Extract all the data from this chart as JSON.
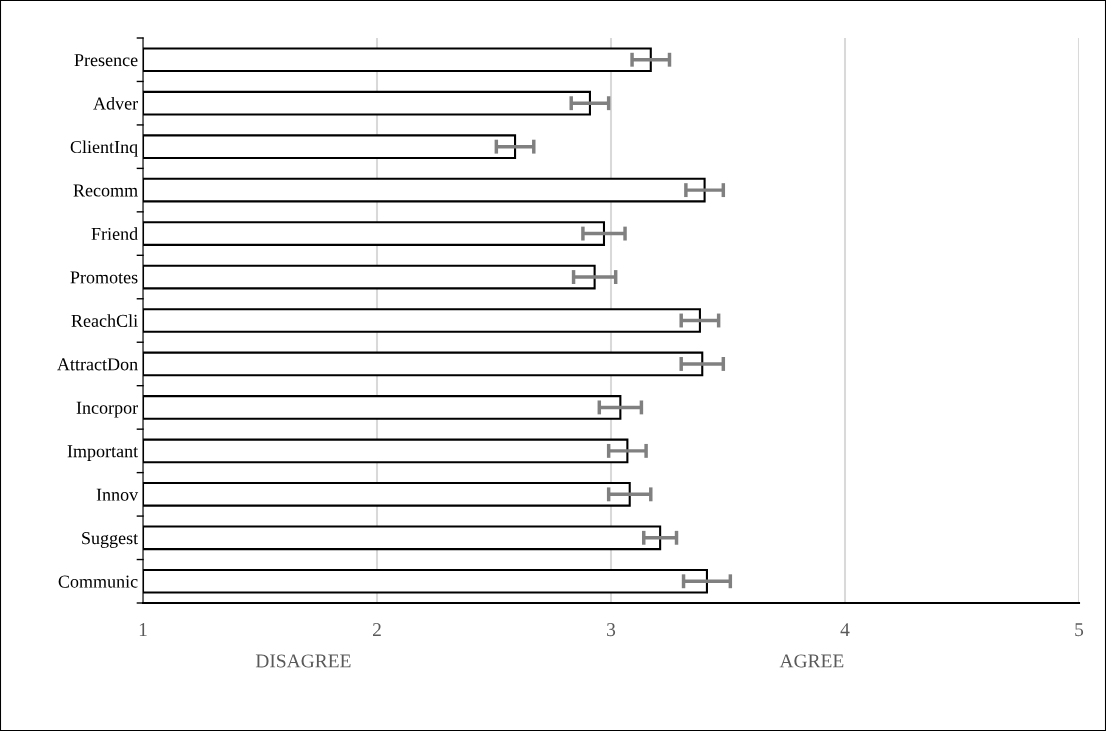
{
  "chart_data": {
    "type": "bar",
    "orientation": "horizontal",
    "categories": [
      "Presence",
      "Adver",
      "ClientInq",
      "Recomm",
      "Friend",
      "Promotes",
      "ReachCli",
      "AttractDon",
      "Incorpor",
      "Important",
      "Innov",
      "Suggest",
      "Communic"
    ],
    "values": [
      3.17,
      2.91,
      2.59,
      3.4,
      2.97,
      2.93,
      3.38,
      3.39,
      3.04,
      3.07,
      3.08,
      3.21,
      3.41
    ],
    "errors": [
      0.08,
      0.08,
      0.08,
      0.08,
      0.09,
      0.09,
      0.08,
      0.09,
      0.09,
      0.08,
      0.09,
      0.07,
      0.1
    ],
    "color": "#ffffff",
    "xlim": [
      1,
      5
    ],
    "xticks": [
      1,
      2,
      3,
      4,
      5
    ],
    "grid": "x",
    "legend": false,
    "annotations": [
      "DISAGREE",
      "AGREE"
    ]
  }
}
